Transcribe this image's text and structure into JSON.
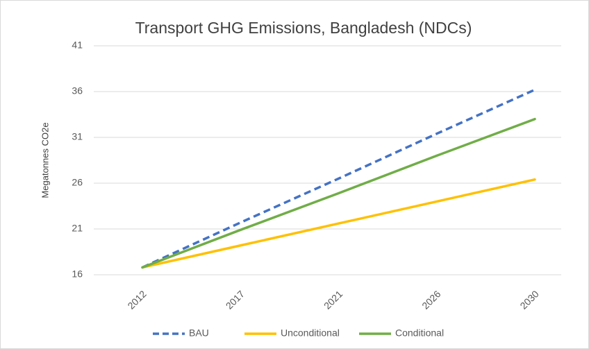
{
  "chart_data": {
    "type": "line",
    "title": "Transport GHG Emissions, Bangladesh (NDCs)",
    "y_label": "Megatonnes CO2e",
    "categories": [
      "2012",
      "2017",
      "2021",
      "2026",
      "2030"
    ],
    "series": [
      {
        "name": "BAU",
        "color": "#4472c4",
        "dashed": true,
        "values": [
          16.8,
          21.7,
          26.5,
          31.4,
          36.2
        ]
      },
      {
        "name": "Unconditional",
        "color": "#ffc000",
        "dashed": false,
        "values": [
          16.8,
          19.2,
          21.6,
          24.0,
          26.4
        ]
      },
      {
        "name": "Conditional",
        "color": "#70ad47",
        "dashed": false,
        "values": [
          16.8,
          20.9,
          24.9,
          29.0,
          33.0
        ]
      }
    ],
    "ylim": [
      16,
      41
    ],
    "yticks": [
      16,
      21,
      26,
      31,
      36,
      41
    ],
    "grid": true,
    "legend": "bottom"
  }
}
